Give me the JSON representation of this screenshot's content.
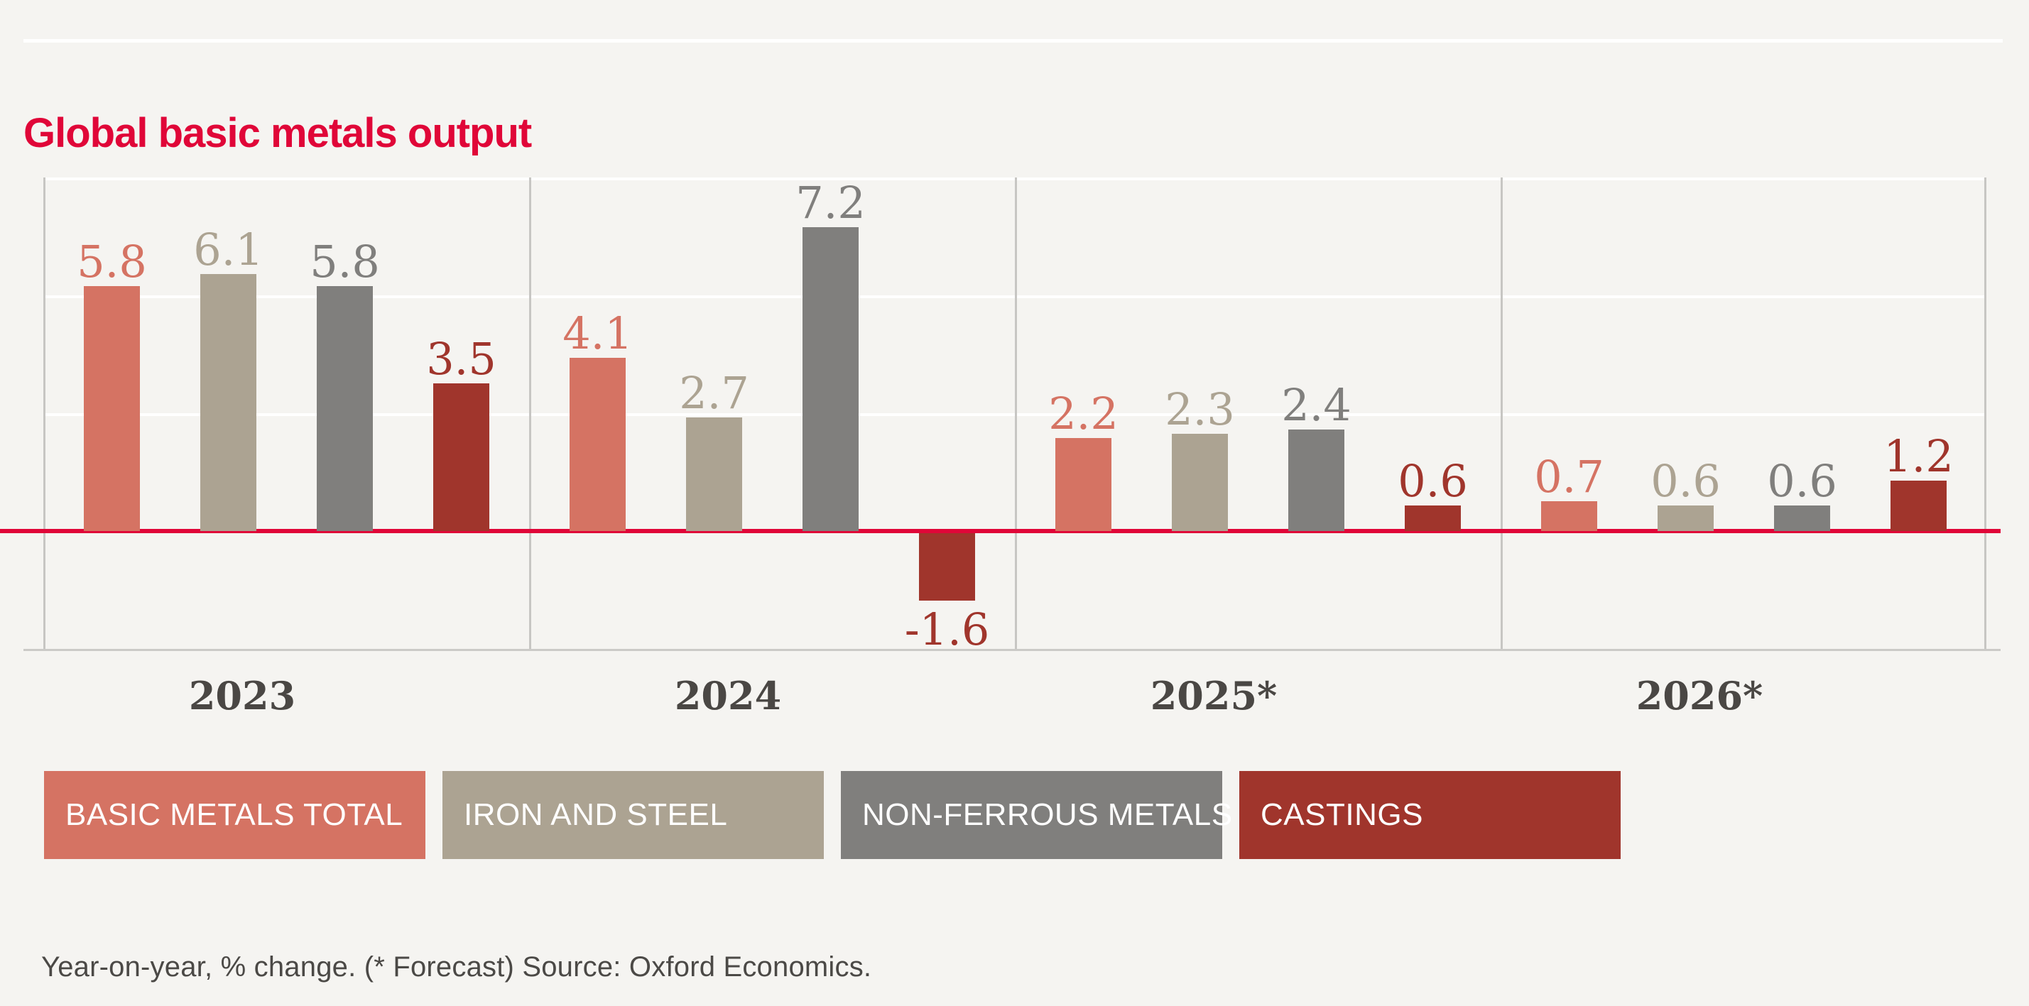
{
  "title": "Global basic metals output",
  "footnote": "Year-on-year, % change. (* Forecast) Source: Oxford Economics.",
  "colors": {
    "background": "#f5f4f1",
    "accent_crimson": "#e00638",
    "gridline_white": "#ffffff",
    "divider_gray": "#c7c6c3",
    "baseline_gray": "#cbcac7",
    "year_label": "#4a4744",
    "footnote_text": "#4b4946",
    "legend_text": "#ffffff"
  },
  "legend": {
    "items": [
      {
        "label": "BASIC METALS TOTAL",
        "color": "#d57363"
      },
      {
        "label": "IRON AND STEEL",
        "color": "#aca392"
      },
      {
        "label": "NON-FERROUS METALS",
        "color": "#807f7d"
      },
      {
        "label": "CASTINGS",
        "color": "#a0352c"
      }
    ]
  },
  "chart_data": {
    "type": "bar",
    "title": "Global basic metals output",
    "subtitle": "",
    "xlabel": "",
    "ylabel": "",
    "units": "Year-on-year % change",
    "categories": [
      "2023",
      "2024",
      "2025*",
      "2026*"
    ],
    "series": [
      {
        "name": "Basic metals total",
        "color": "#d57363",
        "values": [
          5.8,
          4.1,
          2.2,
          0.7
        ]
      },
      {
        "name": "Iron and steel",
        "color": "#aca392",
        "values": [
          6.1,
          2.7,
          2.3,
          0.6
        ]
      },
      {
        "name": "Non-ferrous metals",
        "color": "#807f7d",
        "values": [
          5.8,
          7.2,
          2.4,
          0.6
        ]
      },
      {
        "name": "Castings",
        "color": "#a0352c",
        "values": [
          3.5,
          -1.6,
          0.6,
          1.2
        ]
      }
    ],
    "data_labels": "each bar labeled with its value, one decimal, colored same as its series",
    "ylim": [
      -2.8,
      8.4
    ],
    "y_tick_labels": "none (unlabeled axis)",
    "gridlines": "3 white horizontal gridlines above red zero baseline, evenly spaced",
    "zero_line_color": "#e00638",
    "legend_position": "bottom, colored chips with white uppercase labels",
    "forecast_note": "* Forecast applies to 2025 and 2026"
  }
}
